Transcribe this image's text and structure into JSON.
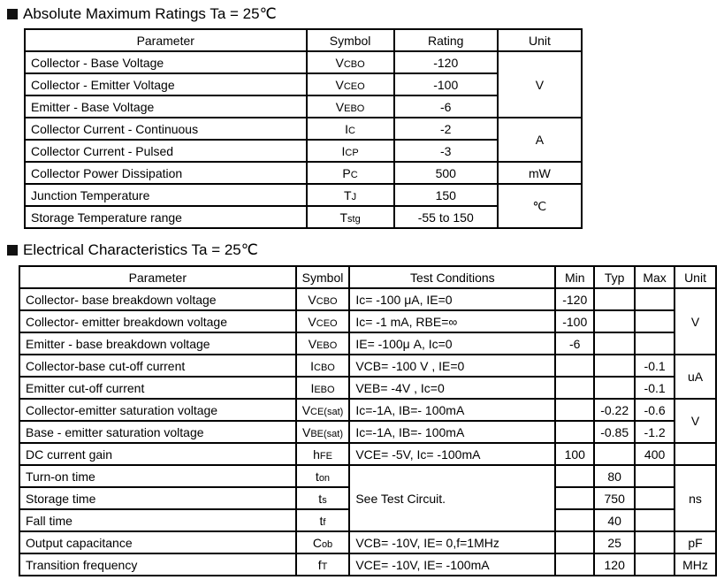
{
  "abs": {
    "title": "Absolute Maximum Ratings Ta = 25℃",
    "headers": [
      "Parameter",
      "Symbol",
      "Rating",
      "Unit"
    ],
    "rows": [
      {
        "p": "Collector - Base Voltage",
        "sm": "V",
        "ss": "CBO",
        "r": "-120"
      },
      {
        "p": "Collector - Emitter Voltage",
        "sm": "V",
        "ss": "CEO",
        "r": "-100"
      },
      {
        "p": "Emitter - Base Voltage",
        "sm": "V",
        "ss": "EBO",
        "r": "-6"
      },
      {
        "p": "Collector Current  - Continuous",
        "sm": "I",
        "ss": "C",
        "r": "-2"
      },
      {
        "p": "Collector Current  - Pulsed",
        "sm": "I",
        "ss": "CP",
        "r": "-3"
      },
      {
        "p": "Collector Power Dissipation",
        "sm": "P",
        "ss": "C",
        "r": "500"
      },
      {
        "p": "Junction Temperature",
        "sm": "T",
        "ss": "J",
        "r": "150"
      },
      {
        "p": "Storage Temperature range",
        "sm": "T",
        "ss": "stg",
        "r": "-55 to 150"
      }
    ],
    "units": [
      "V",
      "A",
      "mW",
      "℃"
    ]
  },
  "elec": {
    "title": "Electrical Characteristics Ta = 25℃",
    "headers": [
      "Parameter",
      "Symbol",
      "Test Conditions",
      "Min",
      "Typ",
      "Max",
      "Unit"
    ],
    "rows": [
      {
        "p": "Collector- base breakdown voltage",
        "sm": "V",
        "ss": "CBO",
        "t": "Ic= -100 μA,   IE=0",
        "min": "-120",
        "typ": "",
        "max": ""
      },
      {
        "p": "Collector- emitter breakdown voltage",
        "sm": "V",
        "ss": "CEO",
        "t": "Ic= -1 mA,   RBE=∞",
        "min": "-100",
        "typ": "",
        "max": ""
      },
      {
        "p": "Emitter - base breakdown voltage",
        "sm": "V",
        "ss": "EBO",
        "t": "IE= -100μ A,   Ic=0",
        "min": "-6",
        "typ": "",
        "max": ""
      },
      {
        "p": "Collector-base cut-off current",
        "sm": "I",
        "ss": "CBO",
        "t": "VCB= -100 V , IE=0",
        "min": "",
        "typ": "",
        "max": "-0.1"
      },
      {
        "p": "Emitter cut-off current",
        "sm": "I",
        "ss": "EBO",
        "t": "VEB= -4V , Ic=0",
        "min": "",
        "typ": "",
        "max": "-0.1"
      },
      {
        "p": "Collector-emitter saturation voltage",
        "sm": "V",
        "ss": "CE(sat)",
        "t": "Ic=-1A, IB=- 100mA",
        "min": "",
        "typ": "-0.22",
        "max": "-0.6"
      },
      {
        "p": "Base - emitter saturation voltage",
        "sm": "V",
        "ss": "BE(sat)",
        "t": "Ic=-1A, IB=- 100mA",
        "min": "",
        "typ": "-0.85",
        "max": "-1.2"
      },
      {
        "p": "DC current gain",
        "sm": "h",
        "ss": "FE",
        "t": "VCE= -5V, Ic= -100mA",
        "min": "100",
        "typ": "",
        "max": "400"
      },
      {
        "p": "Turn-on  time",
        "sm": "t",
        "ss": "on",
        "t": "See Test Circuit.",
        "min": "",
        "typ": "80",
        "max": ""
      },
      {
        "p": "Storage  time",
        "sm": "t",
        "ss": "s",
        "min": "",
        "typ": "750",
        "max": ""
      },
      {
        "p": "Fall  time",
        "sm": "t",
        "ss": "f",
        "min": "",
        "typ": "40",
        "max": ""
      },
      {
        "p": "Output capacitance",
        "sm": "C",
        "ss": "ob",
        "t": "VCB= -10V, IE= 0,f=1MHz",
        "min": "",
        "typ": "25",
        "max": ""
      },
      {
        "p": "Transition frequency",
        "sm": "f",
        "ss": "T",
        "t": "VCE= -10V, IE= -100mA",
        "min": "",
        "typ": "120",
        "max": ""
      }
    ],
    "units": [
      "V",
      "uA",
      "V",
      "",
      "ns",
      "pF",
      "MHz"
    ]
  }
}
